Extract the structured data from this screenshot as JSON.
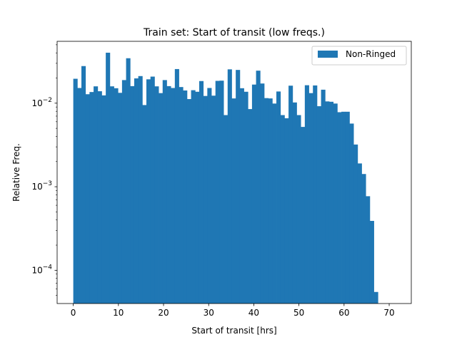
{
  "chart_data": {
    "type": "bar",
    "title": "Train set: Start of transit (low freqs.)",
    "xlabel": "Start of transit [hrs]",
    "ylabel": "Relative Freq.",
    "yscale": "log",
    "xlim": [
      -3.58,
      74.9
    ],
    "ylim": [
      4e-05,
      0.055
    ],
    "xticks": [
      0,
      10,
      20,
      30,
      40,
      50,
      60,
      70
    ],
    "yticks": [
      {
        "value": 0.01,
        "base": "10",
        "exp": "−2"
      },
      {
        "value": 0.001,
        "base": "10",
        "exp": "−3"
      },
      {
        "value": 0.0001,
        "base": "10",
        "exp": "−4"
      }
    ],
    "bin_start": 0,
    "bin_width": 0.9,
    "series": [
      {
        "name": "Non-Ringed",
        "color": "#1f77b4",
        "values": [
          0.0196,
          0.0152,
          0.0278,
          0.0128,
          0.0136,
          0.0159,
          0.0139,
          0.0124,
          0.0402,
          0.0159,
          0.0151,
          0.0133,
          0.0189,
          0.0345,
          0.016,
          0.0198,
          0.0211,
          0.0095,
          0.0193,
          0.0208,
          0.0159,
          0.0132,
          0.0189,
          0.016,
          0.0152,
          0.0256,
          0.0156,
          0.0142,
          0.0112,
          0.0143,
          0.0137,
          0.0184,
          0.0122,
          0.0152,
          0.0123,
          0.0185,
          0.0186,
          0.0072,
          0.0254,
          0.0114,
          0.025,
          0.0151,
          0.0137,
          0.0085,
          0.0167,
          0.0245,
          0.0172,
          0.0115,
          0.0114,
          0.0099,
          0.0138,
          0.0072,
          0.0066,
          0.0162,
          0.0102,
          0.0072,
          0.0052,
          0.0164,
          0.0132,
          0.0163,
          0.0092,
          0.0145,
          0.0105,
          0.0104,
          0.0099,
          0.0078,
          0.0079,
          0.0079,
          0.0057,
          0.0032,
          0.0019,
          0.00142,
          0.00077,
          0.00039,
          5.5e-05
        ]
      }
    ],
    "legend": {
      "position": "top-right"
    },
    "grid": false
  }
}
